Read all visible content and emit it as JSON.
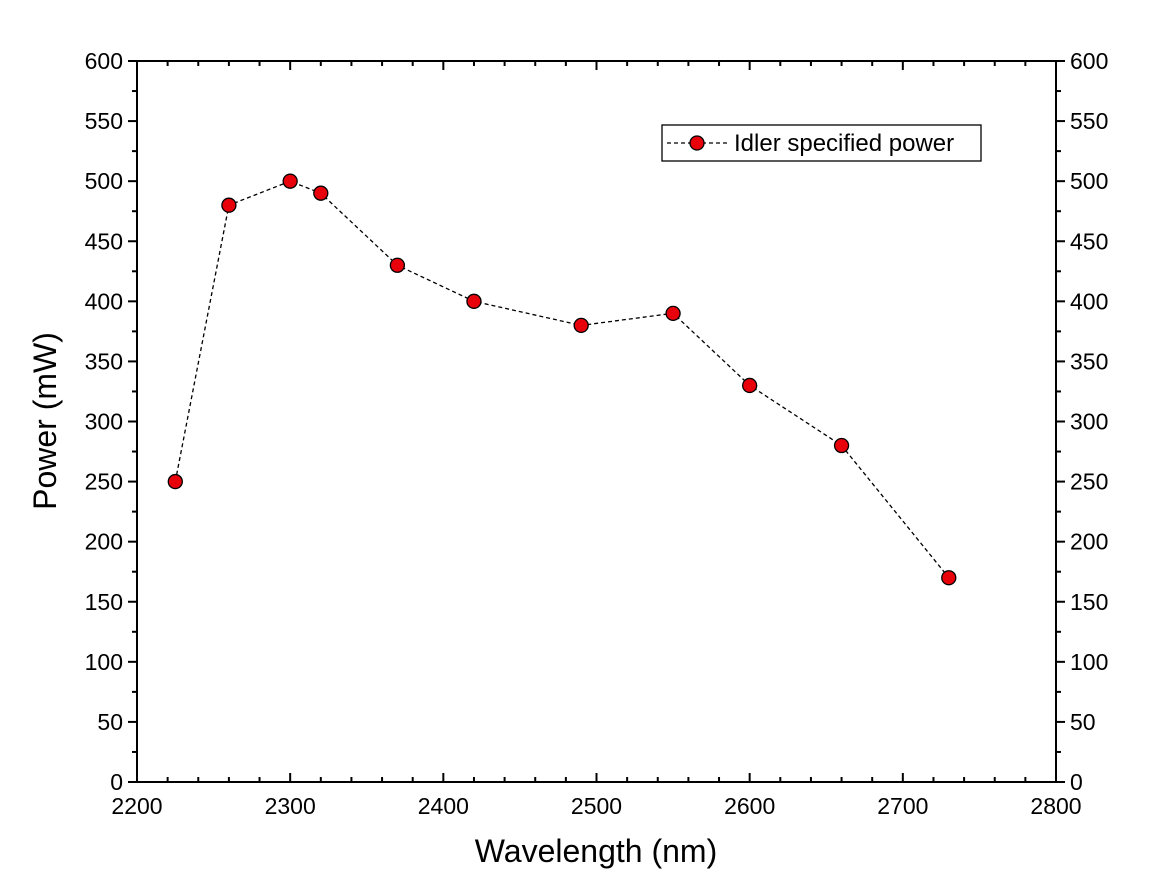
{
  "chart_data": {
    "type": "scatter",
    "title": "",
    "xlabel": "Wavelength (nm)",
    "ylabel": "Power (mW)",
    "xlim": [
      2200,
      2800
    ],
    "ylim": [
      0,
      600
    ],
    "x_ticks": [
      2200,
      2300,
      2400,
      2500,
      2600,
      2700,
      2800
    ],
    "y_ticks": [
      0,
      50,
      100,
      150,
      200,
      250,
      300,
      350,
      400,
      450,
      500,
      550,
      600
    ],
    "grid": false,
    "legend_position": "top-right",
    "series": [
      {
        "name": "Idler specified power",
        "marker": "circle",
        "marker_color": "#e8000b",
        "line_style": "dashed",
        "line_color": "#000000",
        "x": [
          2225,
          2260,
          2300,
          2320,
          2370,
          2420,
          2490,
          2550,
          2600,
          2660,
          2730
        ],
        "y": [
          250,
          480,
          500,
          490,
          430,
          400,
          380,
          390,
          330,
          280,
          170
        ]
      }
    ]
  }
}
